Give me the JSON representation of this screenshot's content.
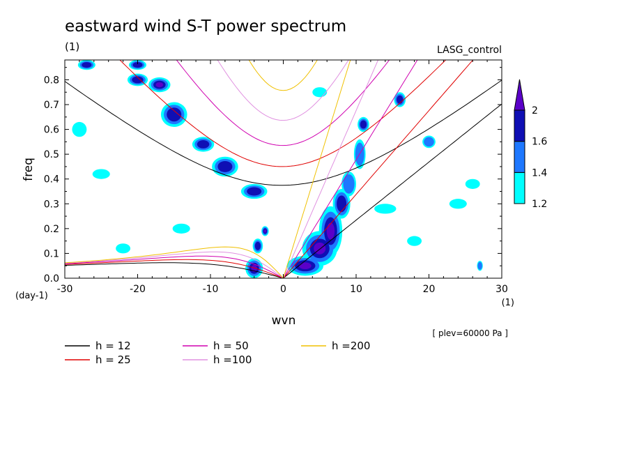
{
  "chart_data": {
    "type": "heatmap",
    "title": "eastward wind S-T power spectrum",
    "units_label": "(1)",
    "run_label": "LASG_control",
    "xlabel": "wvn",
    "ylabel": "freq",
    "y_units_label": "(day-1)",
    "x_units_label": "(1)",
    "level_label": "[ plev=60000 Pa ]",
    "xlim": [
      -30,
      30
    ],
    "ylim": [
      0,
      0.88
    ],
    "x_ticks": [
      -30,
      -20,
      -10,
      0,
      10,
      20,
      30
    ],
    "x_tick_labels": [
      "-30",
      "-20",
      "-10",
      "0",
      "10",
      "20",
      "30"
    ],
    "y_ticks": [
      0,
      0.1,
      0.2,
      0.3,
      0.4,
      0.5,
      0.6,
      0.7,
      0.8
    ],
    "y_tick_labels": [
      "0.0",
      "0.1",
      "0.2",
      "0.3",
      "0.4",
      "0.5",
      "0.6",
      "0.7",
      "0.8"
    ],
    "colorbar": {
      "levels": [
        1.2,
        1.4,
        1.6,
        2
      ],
      "labels": [
        "1.2",
        "1.4",
        "1.6",
        "2"
      ],
      "colors": [
        "#00ffff",
        "#1e78ff",
        "#0f0fb4",
        "#5a00c8"
      ]
    },
    "curves": [
      {
        "label": "h = 12",
        "h": 12,
        "color": "#000000"
      },
      {
        "label": "h = 25",
        "h": 25,
        "color": "#e00000"
      },
      {
        "label": "h = 50",
        "h": 50,
        "color": "#d000b0"
      },
      {
        "label": "h =100",
        "h": 100,
        "color": "#e090e0"
      },
      {
        "label": "h =200",
        "h": 200,
        "color": "#f0c000"
      }
    ],
    "power_regions": [
      {
        "k": 6.5,
        "f": 0.19,
        "dk": 1.6,
        "df": 0.1,
        "level": 2
      },
      {
        "k": 5,
        "f": 0.12,
        "dk": 2.4,
        "df": 0.07,
        "level": 2
      },
      {
        "k": 3,
        "f": 0.05,
        "dk": 2.5,
        "df": 0.04,
        "level": 2
      },
      {
        "k": 8,
        "f": 0.3,
        "dk": 1.2,
        "df": 0.06,
        "level": 1.6
      },
      {
        "k": 9,
        "f": 0.38,
        "dk": 1.0,
        "df": 0.05,
        "level": 1.4
      },
      {
        "k": 10.5,
        "f": 0.5,
        "dk": 0.8,
        "df": 0.06,
        "level": 1.4
      },
      {
        "k": -4,
        "f": 0.04,
        "dk": 1.2,
        "df": 0.04,
        "level": 2
      },
      {
        "k": -3.5,
        "f": 0.13,
        "dk": 0.7,
        "df": 0.03,
        "level": 1.6
      },
      {
        "k": -4,
        "f": 0.35,
        "dk": 1.8,
        "df": 0.03,
        "level": 1.6
      },
      {
        "k": -8,
        "f": 0.45,
        "dk": 1.8,
        "df": 0.04,
        "level": 1.6
      },
      {
        "k": -11,
        "f": 0.54,
        "dk": 1.5,
        "df": 0.03,
        "level": 1.6
      },
      {
        "k": -15,
        "f": 0.66,
        "dk": 1.8,
        "df": 0.05,
        "level": 1.6
      },
      {
        "k": -17,
        "f": 0.78,
        "dk": 1.5,
        "df": 0.03,
        "level": 2
      },
      {
        "k": -20,
        "f": 0.8,
        "dk": 1.4,
        "df": 0.025,
        "level": 1.6
      },
      {
        "k": -27,
        "f": 0.86,
        "dk": 1.2,
        "df": 0.02,
        "level": 1.6
      },
      {
        "k": -20,
        "f": 0.86,
        "dk": 1.2,
        "df": 0.02,
        "level": 1.6
      },
      {
        "k": 11,
        "f": 0.62,
        "dk": 0.8,
        "df": 0.03,
        "level": 1.6
      },
      {
        "k": 16,
        "f": 0.72,
        "dk": 0.8,
        "df": 0.03,
        "level": 1.6
      },
      {
        "k": -2.5,
        "f": 0.19,
        "dk": 0.5,
        "df": 0.02,
        "level": 2
      },
      {
        "k": 20,
        "f": 0.55,
        "dk": 0.9,
        "df": 0.025,
        "level": 1.4
      },
      {
        "k": 27,
        "f": 0.05,
        "dk": 0.4,
        "df": 0.02,
        "level": 1.4
      },
      {
        "k": -28,
        "f": 0.6,
        "dk": 1.0,
        "df": 0.03,
        "level": 1.2
      },
      {
        "k": -25,
        "f": 0.42,
        "dk": 1.2,
        "df": 0.02,
        "level": 1.2
      },
      {
        "k": 14,
        "f": 0.28,
        "dk": 1.5,
        "df": 0.02,
        "level": 1.2
      },
      {
        "k": 24,
        "f": 0.3,
        "dk": 1.2,
        "df": 0.02,
        "level": 1.2
      },
      {
        "k": -14,
        "f": 0.2,
        "dk": 1.2,
        "df": 0.02,
        "level": 1.2
      },
      {
        "k": 18,
        "f": 0.15,
        "dk": 1.0,
        "df": 0.02,
        "level": 1.2
      },
      {
        "k": -22,
        "f": 0.12,
        "dk": 1.0,
        "df": 0.02,
        "level": 1.2
      },
      {
        "k": 5,
        "f": 0.75,
        "dk": 1.0,
        "df": 0.02,
        "level": 1.2
      },
      {
        "k": 26,
        "f": 0.38,
        "dk": 1.0,
        "df": 0.02,
        "level": 1.2
      }
    ]
  }
}
